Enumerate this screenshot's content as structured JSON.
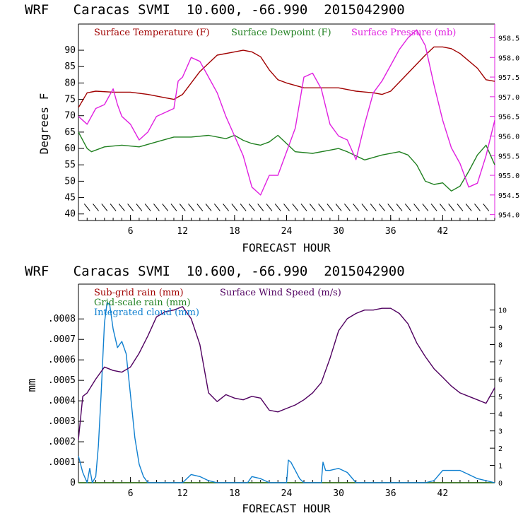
{
  "chart_data": [
    {
      "type": "line",
      "title": "WRF   Caracas SVMI  10.600, -66.990  2015042900",
      "xlabel": "FORECAST HOUR",
      "ylabel": "Degrees F",
      "xlim": [
        0,
        48
      ],
      "xticks": [
        "6",
        "12",
        "18",
        "24",
        "30",
        "36",
        "42"
      ],
      "ylim": [
        38,
        98
      ],
      "yticks": [
        "40",
        "45",
        "50",
        "55",
        "60",
        "65",
        "70",
        "75",
        "80",
        "85",
        "90"
      ],
      "y2lim": [
        953.85,
        958.85
      ],
      "y2ticks": [
        "954.0",
        "954.5",
        "955.0",
        "955.5",
        "956.0",
        "956.5",
        "957.0",
        "957.5",
        "958.0",
        "958.5"
      ],
      "wind_barb_row_y": 42,
      "legend_placement": "top",
      "series": [
        {
          "name": "Surface Temperature (F)",
          "color": "#a00000",
          "axis": "left",
          "x": [
            0,
            1,
            2,
            4,
            6,
            8,
            10,
            11,
            12,
            14,
            16,
            18,
            19,
            20,
            21,
            22,
            23,
            24,
            26,
            28,
            30,
            32,
            34,
            35,
            36,
            38,
            40,
            41,
            42,
            43,
            44,
            46,
            47,
            48
          ],
          "y": [
            72.5,
            77,
            77.5,
            77.2,
            77.2,
            76.5,
            75.5,
            75,
            76.5,
            83.5,
            88.5,
            89.5,
            90,
            89.5,
            88,
            84,
            81,
            80,
            78.5,
            78.5,
            78.5,
            77.5,
            77,
            76.5,
            77.5,
            83,
            88.5,
            91,
            91,
            90.5,
            89,
            84.5,
            81,
            80.5
          ]
        },
        {
          "name": "Surface Dewpoint (F)",
          "color": "#208020",
          "axis": "left",
          "x": [
            0,
            1,
            1.5,
            3,
            5,
            7,
            9,
            11,
            13,
            15,
            17,
            18,
            19,
            20,
            21,
            22,
            23,
            25,
            27,
            29,
            30,
            31,
            33,
            35,
            37,
            38,
            39,
            40,
            41,
            42,
            43,
            44,
            45,
            46,
            47,
            48
          ],
          "y": [
            65,
            60,
            59,
            60.5,
            61,
            60.5,
            62,
            63.5,
            63.5,
            64,
            63,
            64,
            62.5,
            61.5,
            61,
            62,
            64,
            59,
            58.5,
            59.5,
            60,
            59,
            56.5,
            58,
            59,
            58,
            55,
            50,
            49,
            49.5,
            47,
            48.5,
            53,
            58,
            61,
            55
          ]
        },
        {
          "name": "Surface Pressure (mb)",
          "color": "#e020e0",
          "axis": "right",
          "x": [
            0,
            1,
            2,
            3,
            4,
            4.5,
            5,
            6,
            7,
            8,
            9,
            10,
            11,
            11.5,
            12,
            13,
            14,
            15,
            16,
            17,
            18,
            19,
            20,
            21,
            22,
            23,
            24,
            25,
            26,
            27,
            28,
            29,
            30,
            31,
            32,
            33,
            34,
            35,
            36,
            37,
            38,
            39,
            40,
            41,
            42,
            43,
            44,
            45,
            46,
            47,
            48
          ],
          "y": [
            956.5,
            956.3,
            956.7,
            956.8,
            957.2,
            956.8,
            956.5,
            956.3,
            955.9,
            956.1,
            956.5,
            956.6,
            956.7,
            957.4,
            957.5,
            958.0,
            957.9,
            957.5,
            957.1,
            956.5,
            956.0,
            955.5,
            954.7,
            954.5,
            955.0,
            955.0,
            955.6,
            956.2,
            957.5,
            957.6,
            957.2,
            956.3,
            956.0,
            955.9,
            955.4,
            956.3,
            957.1,
            957.4,
            957.8,
            958.2,
            958.5,
            958.7,
            958.3,
            957.3,
            956.4,
            955.7,
            955.3,
            954.7,
            954.8,
            955.5,
            956.4
          ]
        }
      ]
    },
    {
      "type": "line",
      "title": "WRF   Caracas SVMI  10.600, -66.990  2015042900",
      "xlabel": "FORECAST HOUR",
      "ylabel": "mm",
      "xlim": [
        0,
        48
      ],
      "xticks": [
        "6",
        "12",
        "18",
        "24",
        "30",
        "36",
        "42"
      ],
      "ylim": [
        0,
        0.00097
      ],
      "yticks": [
        "0",
        ".0001",
        ".0002",
        ".0003",
        ".0004",
        ".0005",
        ".0006",
        ".0007",
        ".0008"
      ],
      "y2lim": [
        0,
        11.5
      ],
      "y2ticks": [
        "0",
        "1",
        "2",
        "3",
        "4",
        "5",
        "6",
        "7",
        "8",
        "9",
        "10"
      ],
      "legend_placement": "top-left",
      "series": [
        {
          "name": "Sub-grid rain (mm)",
          "color": "#a00000",
          "axis": "left",
          "x": [
            0,
            48
          ],
          "y": [
            0,
            0
          ]
        },
        {
          "name": "Grid-scale rain (mm)",
          "color": "#208020",
          "axis": "left",
          "x": [
            0,
            48
          ],
          "y": [
            0,
            0
          ]
        },
        {
          "name": "Integrated cloud (mm)",
          "color": "#1080d0",
          "axis": "left",
          "x": [
            0,
            0.5,
            1,
            1.3,
            1.6,
            2,
            2.3,
            2.6,
            3,
            3.3,
            3.6,
            4,
            4.5,
            5,
            5.5,
            6,
            6.5,
            7,
            7.5,
            8,
            9,
            12,
            13,
            14,
            15,
            16,
            18,
            19.5,
            20,
            21,
            22,
            23,
            24,
            24.2,
            24.5,
            25,
            25.5,
            26,
            28,
            28.2,
            28.5,
            29,
            30,
            31,
            32,
            34,
            36,
            38,
            40,
            41,
            42,
            43,
            44,
            45,
            46,
            48
          ],
          "y": [
            0.00013,
            5e-05,
            0.0,
            7e-05,
            0.0,
            3e-05,
            0.00018,
            0.00042,
            0.00078,
            0.00088,
            0.00087,
            0.00075,
            0.00066,
            0.00069,
            0.00063,
            0.00043,
            0.00022,
            9e-05,
            3e-05,
            0.0,
            0.0,
            0.0,
            4e-05,
            3e-05,
            1e-05,
            0.0,
            0.0,
            0.0,
            3e-05,
            2e-05,
            0.0,
            0.0,
            0.0,
            0.00011,
            0.0001,
            6e-05,
            2e-05,
            0.0,
            0.0,
            0.0001,
            6e-05,
            6e-05,
            7e-05,
            5e-05,
            0.0,
            0.0,
            0.0,
            0.0,
            0.0,
            1e-05,
            6e-05,
            6e-05,
            6e-05,
            4e-05,
            2e-05,
            0.0
          ]
        },
        {
          "name": "Surface Wind Speed (m/s)",
          "color": "#500060",
          "axis": "right",
          "x": [
            0,
            0.5,
            1,
            2,
            3,
            4,
            5,
            6,
            7,
            8,
            9,
            10,
            11,
            12,
            13,
            14,
            15,
            16,
            17,
            18,
            19,
            20,
            21,
            22,
            23,
            24,
            25,
            26,
            27,
            28,
            29,
            30,
            31,
            32,
            33,
            34,
            35,
            36,
            37,
            38,
            39,
            40,
            41,
            42,
            43,
            44,
            45,
            46,
            47,
            48
          ],
          "y": [
            2.5,
            5,
            5.2,
            6,
            6.7,
            6.5,
            6.4,
            6.7,
            7.5,
            8.5,
            9.6,
            9.9,
            10,
            10.2,
            9.5,
            8,
            5.2,
            4.7,
            5.1,
            4.9,
            4.8,
            5.0,
            4.9,
            4.2,
            4.1,
            4.3,
            4.5,
            4.8,
            5.2,
            5.8,
            7.2,
            8.8,
            9.5,
            9.8,
            10.0,
            10.0,
            10.1,
            10.1,
            9.8,
            9.2,
            8.1,
            7.3,
            6.6,
            6.1,
            5.6,
            5.2,
            5.0,
            4.8,
            4.6,
            5.5
          ]
        }
      ]
    }
  ]
}
